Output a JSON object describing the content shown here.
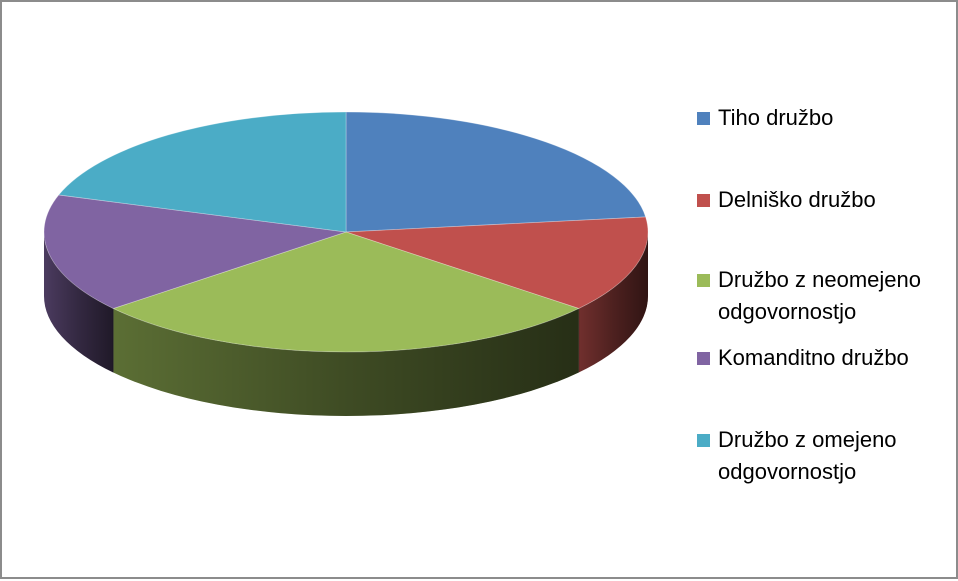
{
  "chart_data": {
    "type": "pie",
    "style": "3d",
    "legend_position": "right",
    "categories": [
      "Tiho družbo",
      "Delniško družbo",
      "Družbo z neomejeno odgovornostjo",
      "Komanditno družbo",
      "Družbo z omejeno odgovornostjo"
    ],
    "values": [
      23,
      13,
      28,
      16,
      20
    ],
    "colors": [
      "#4F81BD",
      "#C0504D",
      "#9BBB59",
      "#8064A2",
      "#4BACC6"
    ]
  }
}
